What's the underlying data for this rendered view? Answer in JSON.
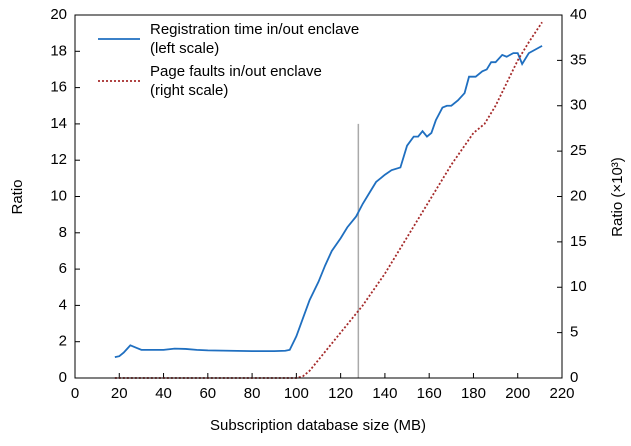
{
  "chart_data": {
    "type": "line",
    "xlabel": "Subscription database size (MB)",
    "ylabel": "Ratio",
    "y2label": "Ratio (×10³)",
    "xlim": [
      0,
      220
    ],
    "xticks": [
      0,
      20,
      40,
      60,
      80,
      100,
      120,
      140,
      160,
      180,
      200,
      220
    ],
    "ylim": [
      0,
      20
    ],
    "yticks": [
      0,
      2,
      4,
      6,
      8,
      10,
      12,
      14,
      16,
      18,
      20
    ],
    "y2lim": [
      0,
      40
    ],
    "y2ticks": [
      0,
      5,
      10,
      15,
      20,
      25,
      30,
      35,
      40
    ],
    "legend": "upper left",
    "vline": {
      "x": 128,
      "y": 14,
      "color": "#aaaaaa"
    },
    "series": [
      {
        "name": "Registration time in/out enclave",
        "note": "(left scale)",
        "color": "#1f6fc0",
        "style": "solid",
        "x": [
          18,
          20,
          22,
          25,
          28,
          30,
          35,
          40,
          45,
          50,
          55,
          60,
          70,
          80,
          90,
          95,
          97,
          100,
          103,
          106,
          110,
          113,
          116,
          120,
          123,
          127,
          130,
          133,
          136,
          140,
          143,
          147,
          150,
          153,
          155,
          157,
          159,
          161,
          163,
          166,
          168,
          170,
          173,
          176,
          178,
          181,
          184,
          186,
          188,
          190,
          193,
          195,
          198,
          200,
          202,
          205,
          208,
          211
        ],
        "values": [
          1.15,
          1.2,
          1.4,
          1.8,
          1.65,
          1.55,
          1.55,
          1.55,
          1.62,
          1.6,
          1.55,
          1.52,
          1.5,
          1.48,
          1.48,
          1.5,
          1.55,
          2.3,
          3.3,
          4.3,
          5.3,
          6.2,
          7.0,
          7.7,
          8.3,
          8.9,
          9.6,
          10.2,
          10.8,
          11.2,
          11.45,
          11.6,
          12.8,
          13.3,
          13.3,
          13.6,
          13.3,
          13.5,
          14.2,
          14.9,
          15.0,
          15.0,
          15.3,
          15.7,
          16.6,
          16.6,
          16.9,
          17.0,
          17.4,
          17.4,
          17.8,
          17.7,
          17.9,
          17.9,
          17.3,
          17.9,
          18.1,
          18.3
        ]
      },
      {
        "name": "Page faults in/out enclave",
        "note": "(right scale)",
        "color": "#a52a2a",
        "style": "dotted",
        "axis": "y2",
        "x": [
          18,
          60,
          100,
          103,
          106,
          110,
          115,
          120,
          125,
          130,
          140,
          150,
          160,
          170,
          180,
          185,
          190,
          195,
          200,
          205,
          211
        ],
        "values": [
          0,
          0,
          0,
          0.2,
          0.8,
          2,
          3.5,
          5,
          6.5,
          8,
          11.5,
          15.5,
          19.5,
          23.5,
          27,
          28,
          30,
          32.5,
          35,
          37,
          39.2
        ]
      }
    ]
  }
}
